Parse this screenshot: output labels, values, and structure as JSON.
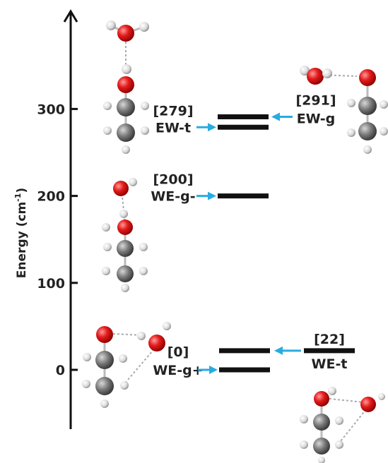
{
  "chart_data": {
    "type": "energy-level-diagram",
    "ylabel": "Energy (cm",
    "ylabel_sup": "-1",
    "ylabel_close": ")",
    "ylim": [
      -65,
      390
    ],
    "yticks": [
      0,
      100,
      200,
      300
    ],
    "levels": [
      {
        "id": "we-g-plus",
        "energy": 0,
        "value_label": "[0]",
        "name_label": "WE-g+"
      },
      {
        "id": "we-t",
        "energy": 22,
        "value_label": "[22]",
        "name_label": "WE-t"
      },
      {
        "id": "we-g-minus",
        "energy": 200,
        "value_label": "[200]",
        "name_label": "WE-g-"
      },
      {
        "id": "ew-t",
        "energy": 279,
        "value_label": "[279]",
        "name_label": "EW-t"
      },
      {
        "id": "ew-g",
        "energy": 291,
        "value_label": "[291]",
        "name_label": "EW-g"
      }
    ]
  },
  "colors": {
    "level": "#111111",
    "arrow": "#29abe2",
    "oxygen": "#e31b1b",
    "carbon": "#7a7a7a",
    "hydrogen": "#e6e6e6"
  }
}
